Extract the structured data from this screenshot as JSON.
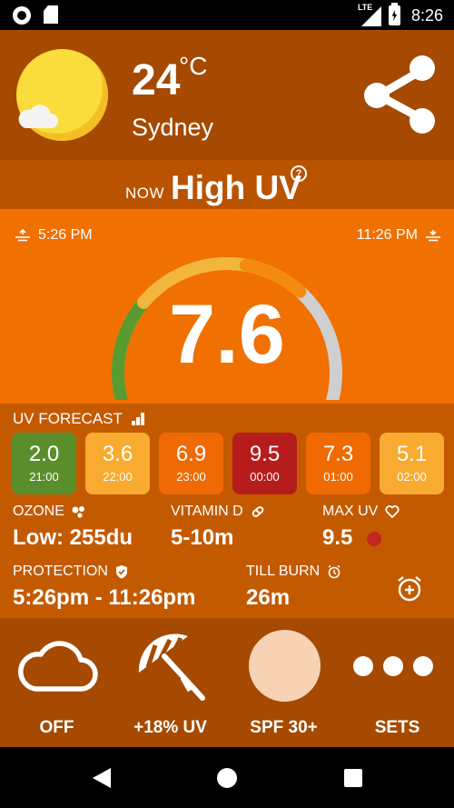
{
  "status_bar": {
    "network": "LTE",
    "time": "8:26"
  },
  "header": {
    "temperature": "24",
    "unit": "°C",
    "city": "Sydney"
  },
  "now": {
    "label": "NOW",
    "uv_level": "High UV",
    "help": "?"
  },
  "gauge": {
    "sunrise_time": "5:26 PM",
    "sunset_time": "11:26 PM",
    "uv_index": "7.6",
    "uv_index_value": 7.6,
    "uv_max_scale": 11,
    "colors": {
      "low": "#5a9a2e",
      "moderate": "#f3b63d",
      "high": "#f58a10",
      "remaining": "#cfcfcf"
    }
  },
  "forecast": {
    "title": "UV FORECAST",
    "items": [
      {
        "value": "2.0",
        "time": "21:00",
        "color": "#5a8e2c"
      },
      {
        "value": "3.6",
        "time": "22:00",
        "color": "#f8ab30"
      },
      {
        "value": "6.9",
        "time": "23:00",
        "color": "#ef6a02"
      },
      {
        "value": "9.5",
        "time": "00:00",
        "color": "#b71c1c"
      },
      {
        "value": "7.3",
        "time": "01:00",
        "color": "#ef6a02"
      },
      {
        "value": "5.1",
        "time": "02:00",
        "color": "#f8ab30"
      }
    ]
  },
  "stats": {
    "ozone": {
      "label": "OZONE",
      "value": "Low: 255du"
    },
    "vitamin_d": {
      "label": "VITAMIN D",
      "value": "5-10m"
    },
    "max_uv": {
      "label": "MAX UV",
      "value": "9.5",
      "color": "#c2271e"
    },
    "protection": {
      "label": "PROTECTION",
      "value": "5:26pm - 11:26pm"
    },
    "till_burn": {
      "label": "TILL BURN",
      "value": "26m"
    }
  },
  "bottom_bar": [
    {
      "label": "OFF",
      "icon": "cloud-icon"
    },
    {
      "label": "+18% UV",
      "icon": "umbrella-icon"
    },
    {
      "label": "SPF 30+",
      "icon": "skin-tone-circle",
      "color": "#f7d2b4"
    },
    {
      "label": "SETS",
      "icon": "more-dots-icon"
    }
  ]
}
